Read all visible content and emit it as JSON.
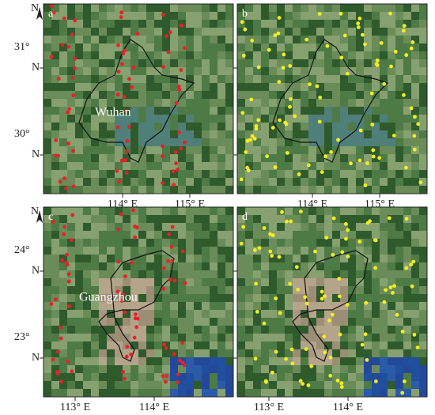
{
  "rows": [
    {
      "north": "N",
      "y_labels": [
        {
          "deg": "31°",
          "dir": "N"
        },
        {
          "deg": "30°",
          "dir": "N"
        }
      ],
      "panels": [
        {
          "label": "a",
          "city": "Wuhan",
          "x_labels": [
            "114° E",
            "115° E"
          ]
        },
        {
          "label": "b",
          "x_labels": [
            "114° E",
            "115° E"
          ]
        }
      ]
    },
    {
      "north": "N",
      "y_labels": [
        {
          "deg": "24°",
          "dir": "N"
        },
        {
          "deg": "23°",
          "dir": "N"
        }
      ],
      "panels": [
        {
          "label": "c",
          "city": "Guangzhou",
          "x_labels": [
            "113° E",
            "114° E"
          ]
        },
        {
          "label": "d",
          "x_labels": [
            "113° E",
            "114° E"
          ]
        }
      ]
    }
  ]
}
